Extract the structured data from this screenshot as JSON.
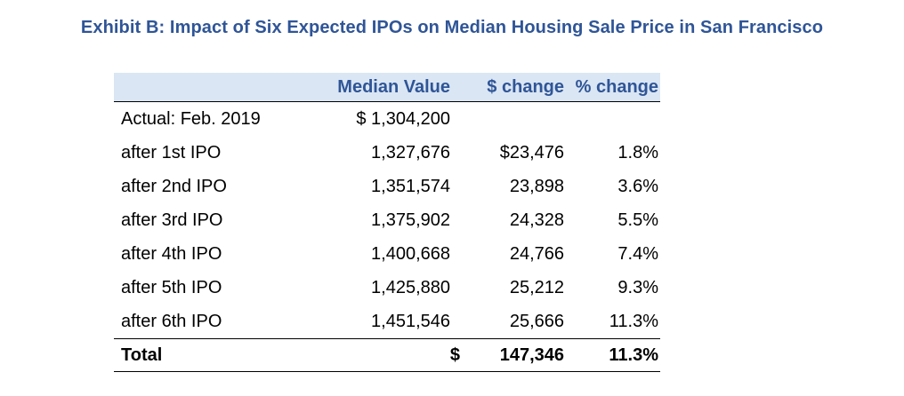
{
  "chart_data": {
    "type": "table",
    "title": "Exhibit B: Impact of Six Expected IPOs on Median Housing Sale Price in San Francisco",
    "columns": [
      "",
      "Median Value",
      "$ change",
      "% change"
    ],
    "rows": [
      {
        "label": "Actual: Feb. 2019",
        "value": "$ 1,304,200",
        "dchange": "",
        "pct": ""
      },
      {
        "label": "after 1st IPO",
        "value": "1,327,676",
        "dchange": "$23,476",
        "pct": "1.8%"
      },
      {
        "label": "after 2nd IPO",
        "value": "1,351,574",
        "dchange": "23,898",
        "pct": "3.6%"
      },
      {
        "label": "after 3rd IPO",
        "value": "1,375,902",
        "dchange": "24,328",
        "pct": "5.5%"
      },
      {
        "label": "after 4th IPO",
        "value": "1,400,668",
        "dchange": "24,766",
        "pct": "7.4%"
      },
      {
        "label": "after 5th IPO",
        "value": "1,425,880",
        "dchange": "25,212",
        "pct": "9.3%"
      },
      {
        "label": "after 6th IPO",
        "value": "1,451,546",
        "dchange": "25,666",
        "pct": "11.3%"
      }
    ],
    "total": {
      "label": "Total",
      "currency": "$",
      "dchange": "147,346",
      "pct": "11.3%"
    }
  },
  "colors": {
    "title": "#2f5597",
    "header_bg": "#dae6f3",
    "header_text": "#2f5597"
  }
}
